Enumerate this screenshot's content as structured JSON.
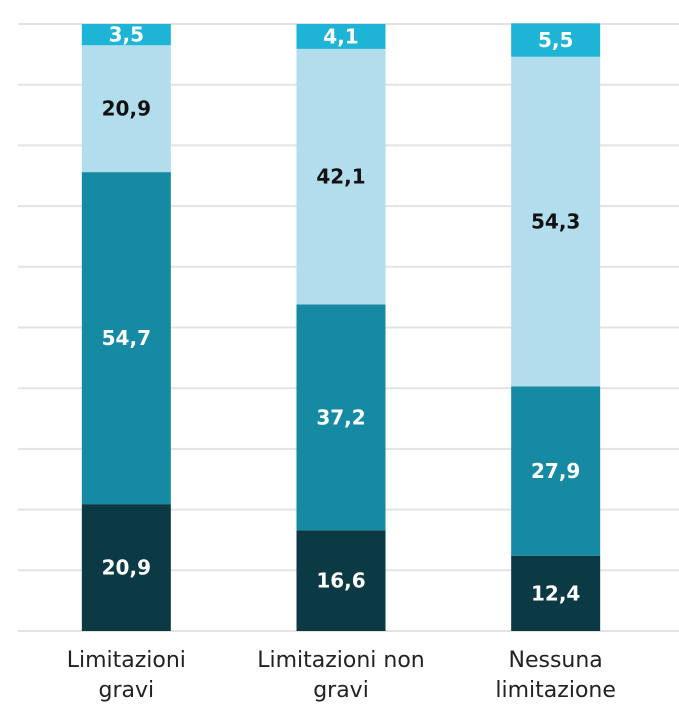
{
  "chart_data": {
    "type": "stacked-bar",
    "categories": [
      "Limitazioni gravi",
      "Limitazioni non gravi",
      "Nessuna limitazione"
    ],
    "series": [
      {
        "color": "#0b3a44",
        "label_color": "#ffffff",
        "values": [
          20.9,
          16.6,
          12.4
        ],
        "value_labels": [
          "20,9",
          "16,6",
          "12,4"
        ]
      },
      {
        "color": "#168aa2",
        "label_color": "#ffffff",
        "values": [
          54.7,
          37.2,
          27.9
        ],
        "value_labels": [
          "54,7",
          "37,2",
          "27,9"
        ]
      },
      {
        "color": "#b2dded",
        "label_color": "#111111",
        "values": [
          20.9,
          42.1,
          54.3
        ],
        "value_labels": [
          "20,9",
          "42,1",
          "54,3"
        ]
      },
      {
        "color": "#1db4d6",
        "label_color": "#ffffff",
        "values": [
          3.5,
          4.1,
          5.5
        ],
        "value_labels": [
          "3,5",
          "4,1",
          "5,5"
        ]
      }
    ],
    "ylim": [
      0,
      100
    ],
    "yticks": [
      0,
      10,
      20,
      30,
      40,
      50,
      60,
      70,
      80,
      90,
      100
    ],
    "grid": true
  }
}
